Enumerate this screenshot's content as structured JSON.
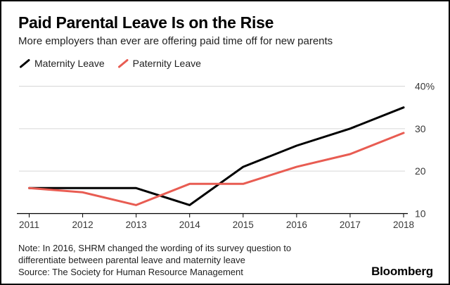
{
  "header": {
    "title": "Paid Parental Leave Is on the Rise",
    "subtitle": "More employers than ever are offering paid time off for new parents"
  },
  "legend": {
    "items": [
      {
        "label": "Maternity Leave",
        "color": "#000000"
      },
      {
        "label": "Paternity Leave",
        "color": "#e85c52"
      }
    ]
  },
  "chart_data": {
    "type": "line",
    "categories": [
      "2011",
      "2012",
      "2013",
      "2014",
      "2015",
      "2016",
      "2017",
      "2018"
    ],
    "series": [
      {
        "name": "Maternity Leave",
        "color": "#000000",
        "values": [
          16,
          16,
          16,
          12,
          21,
          26,
          30,
          35
        ]
      },
      {
        "name": "Paternity Leave",
        "color": "#e85c52",
        "values": [
          16,
          15,
          12,
          17,
          17,
          21,
          24,
          29
        ]
      }
    ],
    "ylim": [
      10,
      40
    ],
    "y_ticks": [
      {
        "value": 40,
        "label": "40%"
      },
      {
        "value": 30,
        "label": "30"
      },
      {
        "value": 20,
        "label": "20"
      },
      {
        "value": 10,
        "label": "10"
      }
    ],
    "unit": "%",
    "grid": "horizontal",
    "legend_position": "top-left",
    "title": "Paid Parental Leave Is on the Rise",
    "xlabel": "",
    "ylabel": ""
  },
  "footer": {
    "note_line1": "Note: In 2016, SHRM changed the wording of its survey question to",
    "note_line2": "differentiate between parental leave and maternity leave",
    "source": "Source: The Society for Human Resource Management",
    "brand": "Bloomberg"
  }
}
